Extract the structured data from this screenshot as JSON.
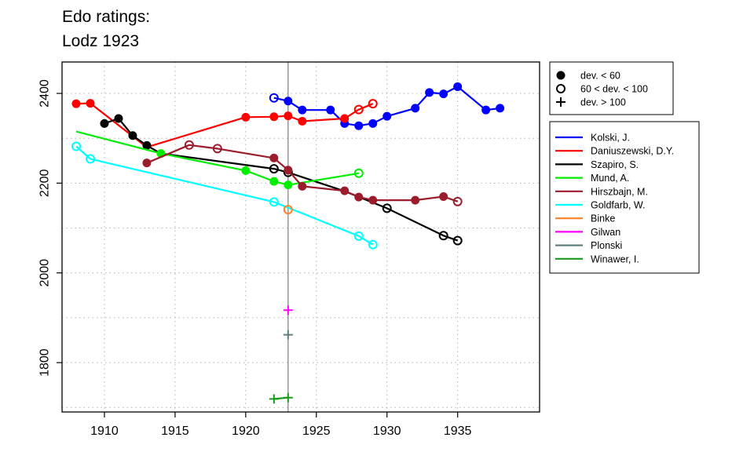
{
  "chart_data": {
    "type": "line",
    "title": [
      "Edo ratings:",
      "Lodz 1923"
    ],
    "xlabel": "",
    "ylabel": "",
    "xlim": [
      1907,
      1940.8
    ],
    "ylim": [
      1690,
      2470
    ],
    "xticks": [
      1910,
      1915,
      1920,
      1925,
      1930,
      1935
    ],
    "yticks": [
      1800,
      2000,
      2200,
      2400
    ],
    "grid": true,
    "reference_line_x": 1923,
    "marker_legend": [
      {
        "marker": "filled",
        "label": "dev. < 60"
      },
      {
        "marker": "open",
        "label": "60 < dev. < 100"
      },
      {
        "marker": "plus",
        "label": "dev. > 100"
      }
    ],
    "series": [
      {
        "name": "Kolski, J.",
        "color": "#0000ff",
        "segments": [
          [
            {
              "x": 1922,
              "y": 2390,
              "m": "open"
            },
            {
              "x": 1923,
              "y": 2383,
              "m": "filled"
            },
            {
              "x": 1924,
              "y": 2363,
              "m": "filled"
            },
            {
              "x": 1926,
              "y": 2363,
              "m": "filled"
            },
            {
              "x": 1927,
              "y": 2333,
              "m": "filled"
            },
            {
              "x": 1928,
              "y": 2328,
              "m": "filled"
            },
            {
              "x": 1929,
              "y": 2333,
              "m": "filled"
            },
            {
              "x": 1930,
              "y": 2349,
              "m": "filled"
            },
            {
              "x": 1932,
              "y": 2367,
              "m": "filled"
            },
            {
              "x": 1933,
              "y": 2402,
              "m": "filled"
            },
            {
              "x": 1934,
              "y": 2399,
              "m": "filled"
            },
            {
              "x": 1935,
              "y": 2415,
              "m": "filled"
            },
            {
              "x": 1937,
              "y": 2363,
              "m": "filled"
            },
            {
              "x": 1938,
              "y": 2367,
              "m": "filled"
            }
          ]
        ]
      },
      {
        "name": "Daniuszewski, D.Y.",
        "color": "#ff0000",
        "segments": [
          [
            {
              "x": 1908,
              "y": 2377,
              "m": "filled"
            },
            {
              "x": 1909,
              "y": 2378,
              "m": "filled"
            },
            {
              "x": 1913,
              "y": 2280,
              "m": "none"
            },
            {
              "x": 1920,
              "y": 2347,
              "m": "filled"
            },
            {
              "x": 1922,
              "y": 2348,
              "m": "filled"
            },
            {
              "x": 1923,
              "y": 2350,
              "m": "filled"
            },
            {
              "x": 1924,
              "y": 2338,
              "m": "filled"
            },
            {
              "x": 1927,
              "y": 2344,
              "m": "filled"
            },
            {
              "x": 1928,
              "y": 2364,
              "m": "open"
            },
            {
              "x": 1929,
              "y": 2377,
              "m": "open"
            }
          ]
        ]
      },
      {
        "name": "Szapiro, S.",
        "color": "#000000",
        "segments": [
          [
            {
              "x": 1910,
              "y": 2333,
              "m": "filled"
            },
            {
              "x": 1911,
              "y": 2344,
              "m": "filled"
            },
            {
              "x": 1912,
              "y": 2306,
              "m": "filled"
            },
            {
              "x": 1913,
              "y": 2284,
              "m": "filled"
            },
            {
              "x": 1914,
              "y": 2266,
              "m": "none"
            },
            {
              "x": 1922,
              "y": 2232,
              "m": "open"
            },
            {
              "x": 1923,
              "y": 2224,
              "m": "open"
            },
            {
              "x": 1927,
              "y": 2182,
              "m": "none"
            },
            {
              "x": 1930,
              "y": 2144,
              "m": "open"
            },
            {
              "x": 1934,
              "y": 2083,
              "m": "open"
            },
            {
              "x": 1935,
              "y": 2072,
              "m": "open"
            }
          ]
        ]
      },
      {
        "name": "Mund, A.",
        "color": "#00ee00",
        "segments": [
          [
            {
              "x": 1908,
              "y": 2315,
              "m": "none"
            },
            {
              "x": 1914,
              "y": 2266,
              "m": "filled"
            },
            {
              "x": 1920,
              "y": 2228,
              "m": "filled"
            },
            {
              "x": 1922,
              "y": 2204,
              "m": "filled"
            },
            {
              "x": 1923,
              "y": 2196,
              "m": "filled"
            },
            {
              "x": 1928,
              "y": 2222,
              "m": "open"
            }
          ]
        ]
      },
      {
        "name": "Hirszbajn, M.",
        "color": "#9b1c2b",
        "segments": [
          [
            {
              "x": 1913,
              "y": 2245,
              "m": "filled"
            },
            {
              "x": 1916,
              "y": 2285,
              "m": "open"
            },
            {
              "x": 1918,
              "y": 2277,
              "m": "open"
            },
            {
              "x": 1922,
              "y": 2256,
              "m": "filled"
            },
            {
              "x": 1923,
              "y": 2229,
              "m": "filled"
            },
            {
              "x": 1924,
              "y": 2193,
              "m": "filled"
            },
            {
              "x": 1927,
              "y": 2183,
              "m": "filled"
            },
            {
              "x": 1928,
              "y": 2169,
              "m": "filled"
            },
            {
              "x": 1929,
              "y": 2162,
              "m": "filled"
            },
            {
              "x": 1932,
              "y": 2162,
              "m": "filled"
            },
            {
              "x": 1934,
              "y": 2170,
              "m": "filled"
            },
            {
              "x": 1935,
              "y": 2159,
              "m": "open"
            }
          ]
        ]
      },
      {
        "name": "Goldfarb, W.",
        "color": "#00ffff",
        "segments": [
          [
            {
              "x": 1908,
              "y": 2282,
              "m": "open"
            },
            {
              "x": 1909,
              "y": 2254,
              "m": "open"
            },
            {
              "x": 1922,
              "y": 2158,
              "m": "open"
            },
            {
              "x": 1928,
              "y": 2082,
              "m": "open"
            },
            {
              "x": 1929,
              "y": 2063,
              "m": "open"
            }
          ]
        ]
      },
      {
        "name": "Binke",
        "color": "#ff7f24",
        "segments": [
          [
            {
              "x": 1923,
              "y": 2141,
              "m": "open"
            }
          ]
        ]
      },
      {
        "name": "Gilwan",
        "color": "#ff00ff",
        "segments": [
          [
            {
              "x": 1923,
              "y": 1917,
              "m": "plus"
            }
          ]
        ]
      },
      {
        "name": "Plonski",
        "color": "#5f7f7f",
        "segments": [
          [
            {
              "x": 1923,
              "y": 1862,
              "m": "plus"
            }
          ]
        ]
      },
      {
        "name": "Winawer, I.",
        "color": "#1a9a1a",
        "segments": [
          [
            {
              "x": 1922,
              "y": 1719,
              "m": "plus"
            },
            {
              "x": 1923,
              "y": 1722,
              "m": "plus"
            }
          ]
        ]
      }
    ]
  }
}
